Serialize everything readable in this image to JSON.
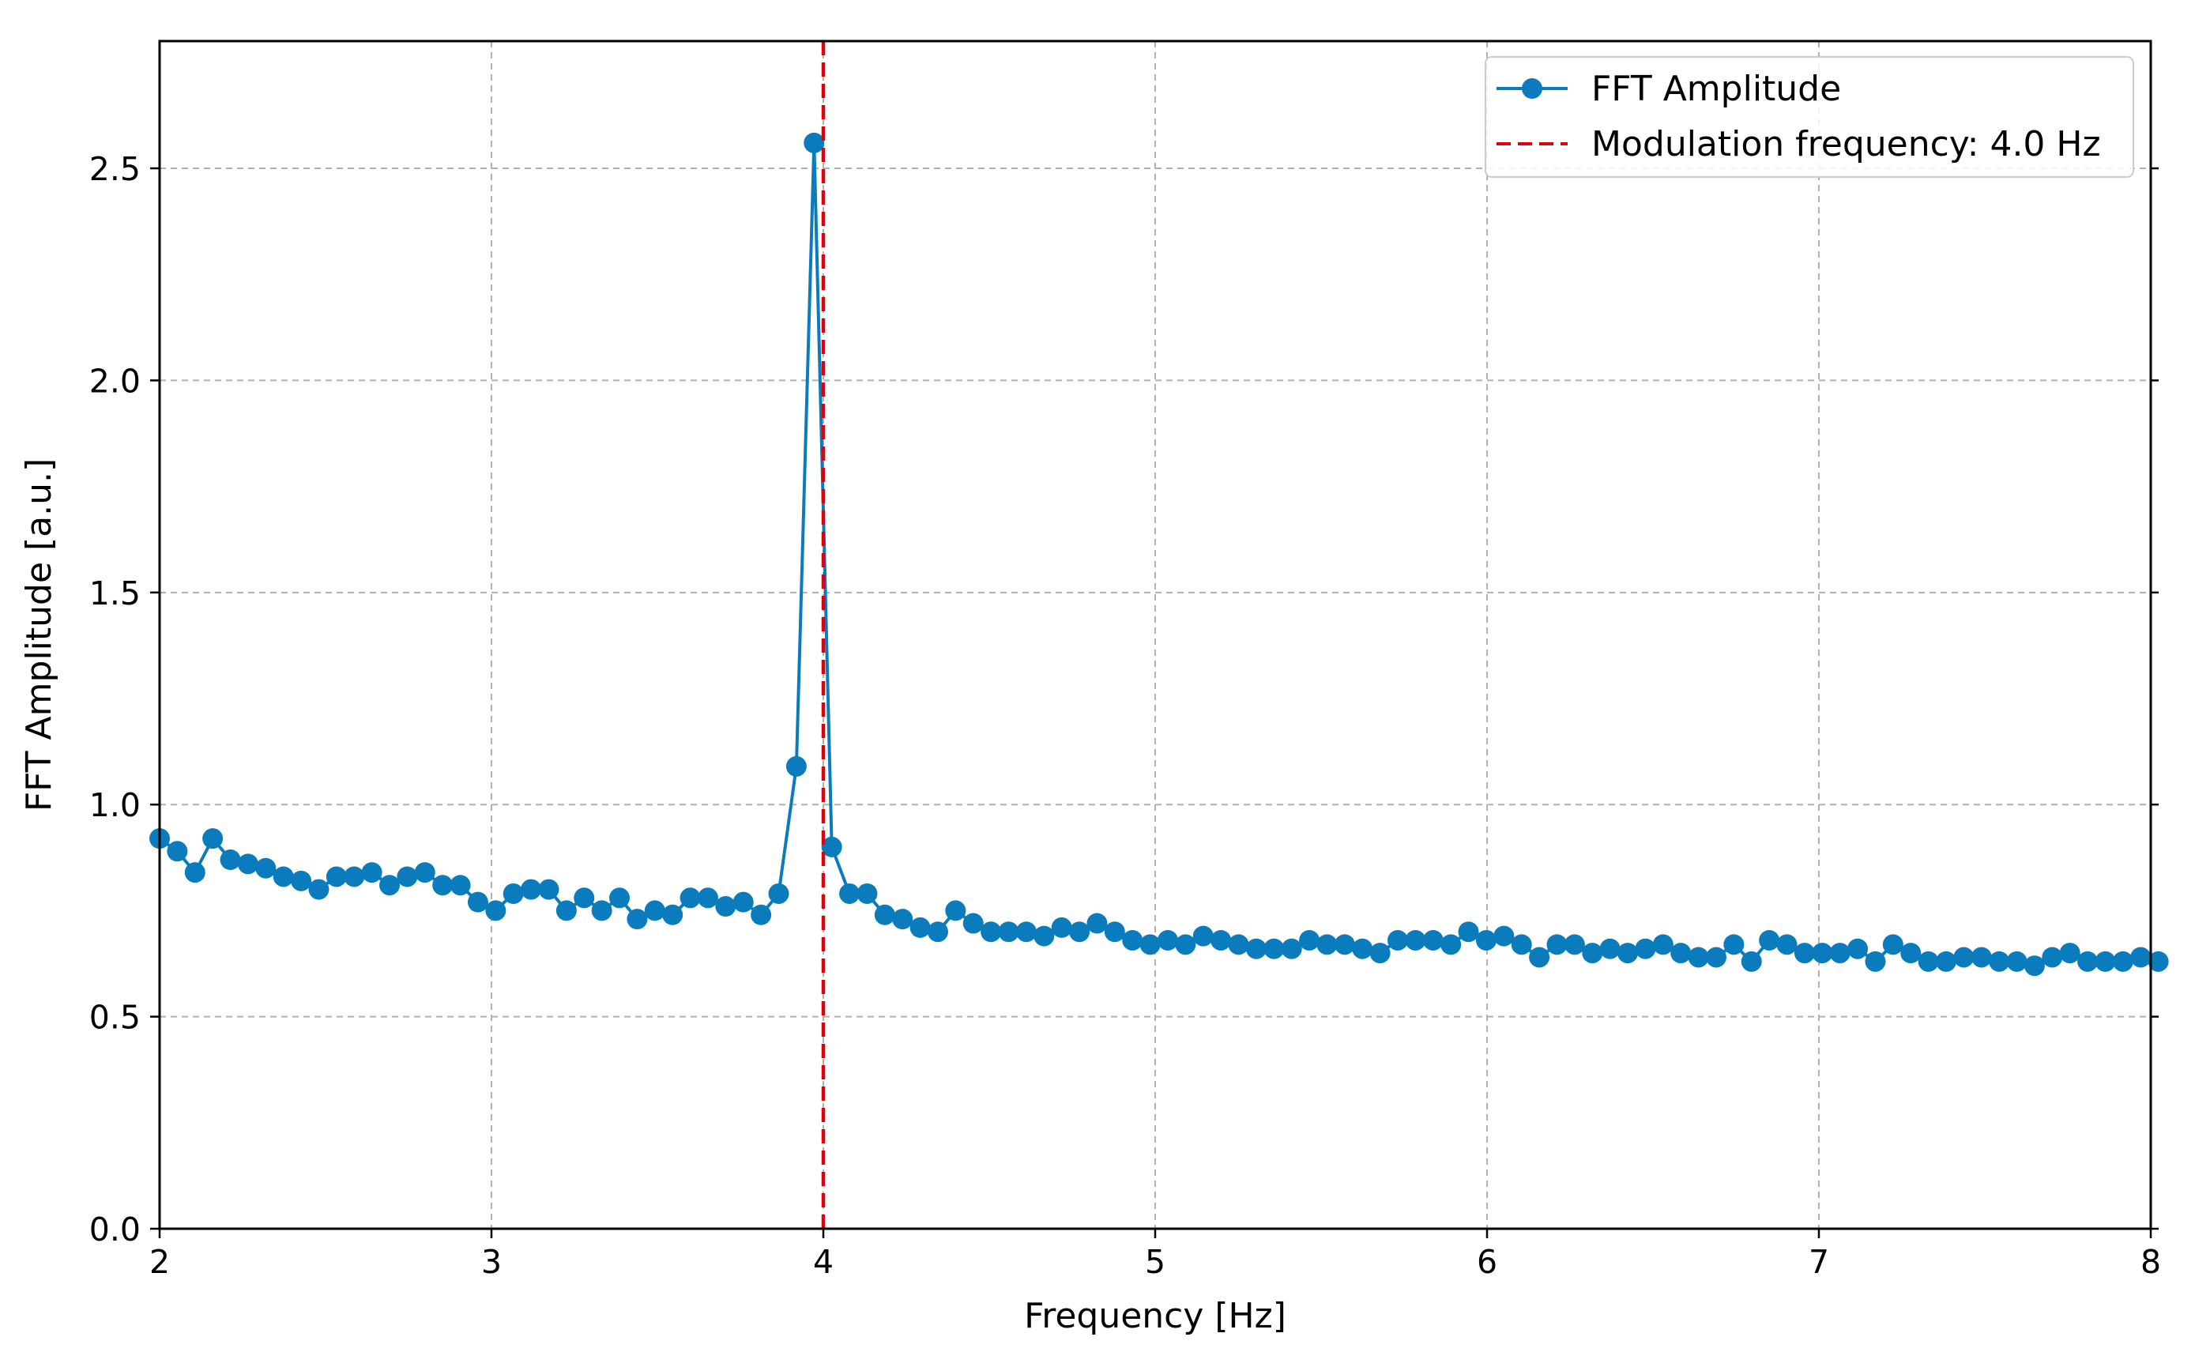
{
  "chart_data": {
    "type": "line",
    "title": "",
    "xlabel": "Frequency [Hz]",
    "ylabel": "FFT Amplitude [a.u.]",
    "xlim": [
      2,
      8
    ],
    "ylim": [
      0,
      2.8
    ],
    "xticks": [
      2,
      3,
      4,
      5,
      6,
      7,
      8
    ],
    "xtick_labels": [
      "2",
      "3",
      "4",
      "5",
      "6",
      "7",
      "8"
    ],
    "yticks": [
      0.0,
      0.5,
      1.0,
      1.5,
      2.0,
      2.5
    ],
    "ytick_labels": [
      "0.0",
      "0.5",
      "1.0",
      "1.5",
      "2.0",
      "2.5"
    ],
    "grid": true,
    "legend_position": "top-right",
    "colors": {
      "series": "#0a7cbd",
      "vline": "#e0000a",
      "grid": "#b0b0b0",
      "axes": "#000000"
    },
    "series": [
      {
        "name": "FFT Amplitude",
        "style": "line-marker",
        "x_start": 2.0,
        "x_step": 0.0533,
        "values": [
          0.92,
          0.89,
          0.84,
          0.92,
          0.87,
          0.86,
          0.85,
          0.83,
          0.82,
          0.8,
          0.83,
          0.83,
          0.84,
          0.81,
          0.83,
          0.84,
          0.81,
          0.81,
          0.77,
          0.75,
          0.79,
          0.8,
          0.8,
          0.75,
          0.78,
          0.75,
          0.78,
          0.73,
          0.75,
          0.74,
          0.78,
          0.78,
          0.76,
          0.77,
          0.74,
          0.79,
          1.09,
          2.56,
          0.9,
          0.79,
          0.79,
          0.74,
          0.73,
          0.71,
          0.7,
          0.75,
          0.72,
          0.7,
          0.7,
          0.7,
          0.69,
          0.71,
          0.7,
          0.72,
          0.7,
          0.68,
          0.67,
          0.68,
          0.67,
          0.69,
          0.68,
          0.67,
          0.66,
          0.66,
          0.66,
          0.68,
          0.67,
          0.67,
          0.66,
          0.65,
          0.68,
          0.68,
          0.68,
          0.67,
          0.7,
          0.68,
          0.69,
          0.67,
          0.64,
          0.67,
          0.67,
          0.65,
          0.66,
          0.65,
          0.66,
          0.67,
          0.65,
          0.64,
          0.64,
          0.67,
          0.63,
          0.68,
          0.67,
          0.65,
          0.65,
          0.65,
          0.66,
          0.63,
          0.67,
          0.65,
          0.63,
          0.63,
          0.64,
          0.64,
          0.63,
          0.63,
          0.62,
          0.64,
          0.65,
          0.63,
          0.63,
          0.63,
          0.64,
          0.63
        ]
      },
      {
        "name": "Modulation frequency: 4.0 Hz",
        "style": "dashed-vline",
        "x": 4.0
      }
    ]
  }
}
